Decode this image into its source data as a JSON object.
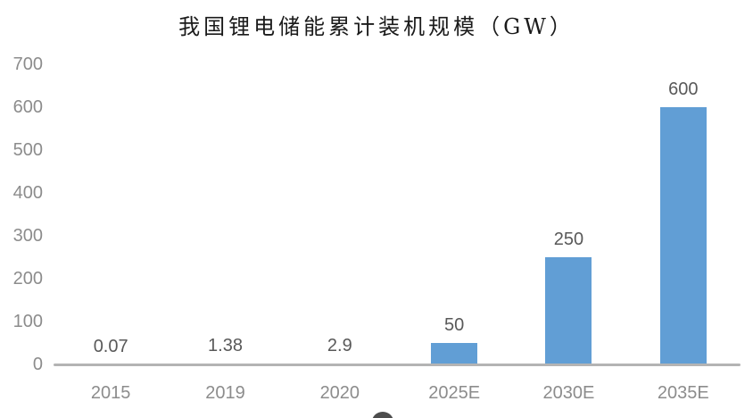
{
  "chart_data": {
    "type": "bar",
    "title": "我国锂电储能累计装机规模（GW）",
    "categories": [
      "2015",
      "2019",
      "2020",
      "2025E",
      "2030E",
      "2035E"
    ],
    "values": [
      0.07,
      1.38,
      2.9,
      50,
      250,
      600
    ],
    "value_labels": [
      "0.07",
      "1.38",
      "2.9",
      "50",
      "250",
      "600"
    ],
    "xlabel": "",
    "ylabel": "",
    "ylim": [
      0,
      700
    ],
    "yticks": [
      0,
      100,
      200,
      300,
      400,
      500,
      600,
      700
    ],
    "grid": false,
    "legend": "none",
    "layout": {
      "bar_color": "#619ed5",
      "axis_line_color": "#b4b4b4",
      "tick_label_color": "#8c8c8c",
      "value_label_color": "#595959",
      "title_color": "#1a1a1a"
    }
  }
}
